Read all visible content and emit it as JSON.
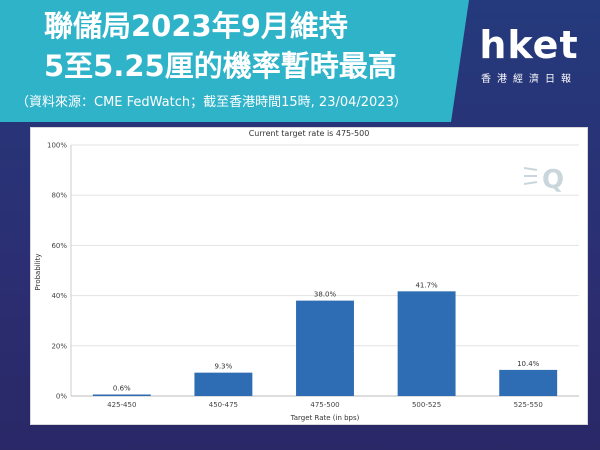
{
  "headline": {
    "line1": "聯儲局2023年9月維持",
    "line2": "5至5.25厘的機率暫時最高"
  },
  "source": "（資料來源：CME FedWatch；截至香港時間15時, 23/04/2023）",
  "logo": {
    "word": "hket",
    "subtitle": "香港經濟日報"
  },
  "chart_data": {
    "type": "bar",
    "title": "Current target rate is 475-500",
    "xlabel": "Target Rate (in bps)",
    "ylabel": "Probability",
    "categories": [
      "425-450",
      "450-475",
      "475-500",
      "500-525",
      "525-550"
    ],
    "values": [
      0.6,
      9.3,
      38.0,
      41.7,
      10.4
    ],
    "value_labels": [
      "0.6%",
      "9.3%",
      "38.0%",
      "41.7%",
      "10.4%"
    ],
    "y_ticks": [
      0,
      20,
      40,
      60,
      80,
      100
    ],
    "y_tick_labels": [
      "0%",
      "20%",
      "40%",
      "60%",
      "80%",
      "100%"
    ],
    "ylim": [
      0,
      100
    ],
    "grid": true,
    "bar_color": "#2e6db3",
    "watermark": "Q"
  }
}
